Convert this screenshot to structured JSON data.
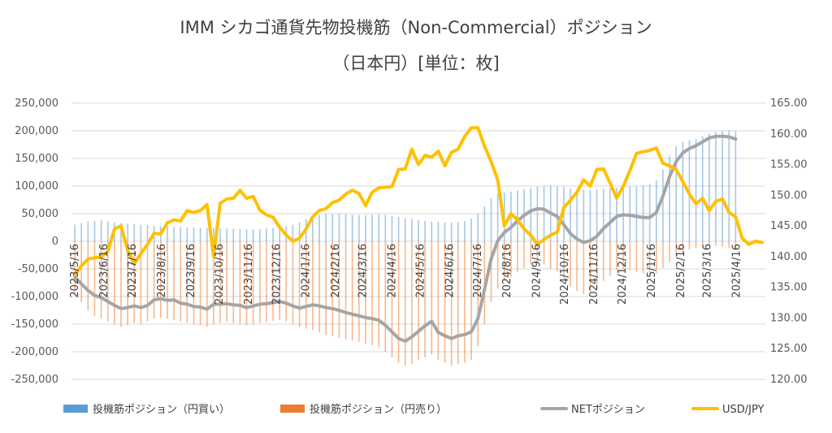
{
  "chart_data": {
    "type": "bar+line",
    "title": "IMM シカゴ通貨先物投機筋（Non-Commercial）ポジション",
    "subtitle": "（日本円）[単位：枚]",
    "left_axis": {
      "ylim": [
        -250000,
        250000
      ],
      "ticks": [
        250000,
        200000,
        150000,
        100000,
        50000,
        0,
        -50000,
        -100000,
        -150000,
        -200000,
        -250000
      ],
      "tick_labels": [
        "250,000",
        "200,000",
        "150,000",
        "100,000",
        "50,000",
        "0",
        "-50,000",
        "-100,000",
        "-150,000",
        "-200,000",
        "-250,000"
      ]
    },
    "right_axis": {
      "ylim": [
        120,
        165
      ],
      "ticks": [
        165,
        160,
        155,
        150,
        145,
        140,
        135,
        130,
        125,
        120
      ],
      "tick_labels": [
        "165.00",
        "160.00",
        "155.00",
        "150.00",
        "145.00",
        "140.00",
        "135.00",
        "130.00",
        "125.00",
        "120.00"
      ]
    },
    "x_tick_labels": [
      "2023/5/16",
      "2023/6/16",
      "2023/7/16",
      "2023/8/16",
      "2023/9/16",
      "2023/10/16",
      "2023/11/16",
      "2023/12/16",
      "2024/1/16",
      "2024/2/16",
      "2024/3/16",
      "2024/4/16",
      "2024/5/16",
      "2024/6/16",
      "2024/7/16",
      "2024/8/16",
      "2024/9/16",
      "2024/10/16",
      "2024/11/16",
      "2024/12/16",
      "2025/1/16",
      "2025/2/16",
      "2025/3/16",
      "2025/4/16"
    ],
    "x_tick_positions": [
      0,
      4.43,
      8.71,
      13.14,
      17.57,
      21.86,
      26.29,
      30.57,
      35,
      39.43,
      43.57,
      48,
      52.29,
      56.71,
      61,
      65.43,
      69.86,
      74.14,
      78.57,
      82.86,
      87.29,
      91.71,
      95.71,
      100.14
    ],
    "grid": true,
    "legend_position": "bottom",
    "series": [
      {
        "name": "投機筋ポジション（円買い）",
        "axis": "left",
        "kind": "bar",
        "color": "#5B9BD5",
        "values": [
          30000,
          33000,
          36000,
          37000,
          38000,
          36000,
          34000,
          33000,
          32000,
          31000,
          30000,
          29000,
          28000,
          27000,
          27000,
          26000,
          26000,
          25000,
          25000,
          24000,
          24000,
          24000,
          23000,
          23000,
          23000,
          22000,
          22000,
          22000,
          22000,
          23000,
          24000,
          25000,
          27000,
          30000,
          34000,
          40000,
          45000,
          48000,
          50000,
          50000,
          50000,
          49000,
          48000,
          47000,
          47000,
          48000,
          49000,
          48000,
          46000,
          44000,
          42000,
          40000,
          38000,
          37000,
          36000,
          35000,
          34000,
          34000,
          35000,
          37000,
          41000,
          50000,
          63000,
          78000,
          86000,
          88000,
          90000,
          92000,
          95000,
          97000,
          99000,
          100000,
          101000,
          100000,
          98000,
          96000,
          94000,
          93000,
          93000,
          94000,
          95000,
          96000,
          97000,
          98000,
          99000,
          100000,
          101000,
          103000,
          110000,
          130000,
          155000,
          172000,
          180000,
          183000,
          185000,
          190000,
          195000,
          198000,
          200000,
          201000,
          200000
        ]
      },
      {
        "name": "投機筋ポジション（円売り）",
        "axis": "left",
        "kind": "bar",
        "color": "#ED7D31",
        "values": [
          -95000,
          -110000,
          -125000,
          -135000,
          -140000,
          -145000,
          -150000,
          -155000,
          -152000,
          -148000,
          -150000,
          -145000,
          -140000,
          -138000,
          -140000,
          -142000,
          -145000,
          -148000,
          -150000,
          -152000,
          -155000,
          -150000,
          -148000,
          -146000,
          -148000,
          -150000,
          -152000,
          -150000,
          -148000,
          -146000,
          -144000,
          -142000,
          -145000,
          -150000,
          -155000,
          -158000,
          -160000,
          -165000,
          -170000,
          -172000,
          -175000,
          -178000,
          -180000,
          -182000,
          -185000,
          -188000,
          -192000,
          -200000,
          -210000,
          -220000,
          -225000,
          -222000,
          -215000,
          -210000,
          -205000,
          -215000,
          -220000,
          -225000,
          -222000,
          -220000,
          -215000,
          -190000,
          -150000,
          -110000,
          -85000,
          -72000,
          -65000,
          -55000,
          -48000,
          -42000,
          -40000,
          -42000,
          -50000,
          -55000,
          -68000,
          -82000,
          -90000,
          -95000,
          -92000,
          -85000,
          -72000,
          -62000,
          -52000,
          -50000,
          -52000,
          -55000,
          -58000,
          -60000,
          -58000,
          -48000,
          -38000,
          -28000,
          -20000,
          -15000,
          -12000,
          -10000,
          -8000,
          -8000,
          -10000,
          -12000,
          -15000
        ]
      },
      {
        "name": "NETポジション",
        "axis": "left",
        "kind": "line",
        "color": "#A5A5A5",
        "values": [
          -65000,
          -77000,
          -89000,
          -98000,
          -102000,
          -109000,
          -116000,
          -122000,
          -120000,
          -117000,
          -120000,
          -116000,
          -106000,
          -104000,
          -107000,
          -106000,
          -112000,
          -114000,
          -118000,
          -119000,
          -123000,
          -114000,
          -114000,
          -113000,
          -115000,
          -116000,
          -120000,
          -117000,
          -114000,
          -113000,
          -111000,
          -109000,
          -112000,
          -117000,
          -121000,
          -118000,
          -115000,
          -117000,
          -120000,
          -122000,
          -125000,
          -129000,
          -132000,
          -135000,
          -138000,
          -140000,
          -143000,
          -152000,
          -164000,
          -176000,
          -181000,
          -173000,
          -163000,
          -153000,
          -145000,
          -165000,
          -171000,
          -176000,
          -171000,
          -169000,
          -164000,
          -140000,
          -87000,
          -32000,
          1000,
          16000,
          25000,
          37000,
          47000,
          55000,
          59000,
          58000,
          51000,
          45000,
          30000,
          14000,
          4000,
          -2000,
          1000,
          9000,
          23000,
          34000,
          45000,
          48000,
          47000,
          45000,
          43000,
          43000,
          52000,
          82000,
          117000,
          144000,
          160000,
          168000,
          173000,
          180000,
          187000,
          190000,
          190000,
          189000,
          185000
        ]
      },
      {
        "name": "USD/JPY",
        "axis": "right",
        "kind": "line",
        "color": "#FFC000",
        "values": [
          137.0,
          138.5,
          139.6,
          139.8,
          140.0,
          140.8,
          144.5,
          145.0,
          141.0,
          138.8,
          140.5,
          142.0,
          143.8,
          143.7,
          145.5,
          146.0,
          145.8,
          147.5,
          147.2,
          147.5,
          148.5,
          140.0,
          148.7,
          149.4,
          149.5,
          150.8,
          149.5,
          149.8,
          147.6,
          146.8,
          146.4,
          144.8,
          143.5,
          142.5,
          143.0,
          144.5,
          146.5,
          147.5,
          147.8,
          148.8,
          149.2,
          150.2,
          150.8,
          150.3,
          148.3,
          150.5,
          151.2,
          151.3,
          151.4,
          154.2,
          154.3,
          157.5,
          155.0,
          156.5,
          156.2,
          157.2,
          154.8,
          157.0,
          157.5,
          159.6,
          161.0,
          161.0,
          158.0,
          155.5,
          152.5,
          145.0,
          147.0,
          146.0,
          144.5,
          143.5,
          142.0,
          142.8,
          143.5,
          144.0,
          148.0,
          149.2,
          150.5,
          152.5,
          151.5,
          154.2,
          154.3,
          152.0,
          149.5,
          151.5,
          154.0,
          156.8,
          157.1,
          157.3,
          157.7,
          155.2,
          154.8,
          154.2,
          152.2,
          150.2,
          148.6,
          149.5,
          147.5,
          149.0,
          149.4,
          147.2,
          146.5,
          143.0,
          142.0,
          142.5,
          142.3
        ]
      }
    ]
  }
}
